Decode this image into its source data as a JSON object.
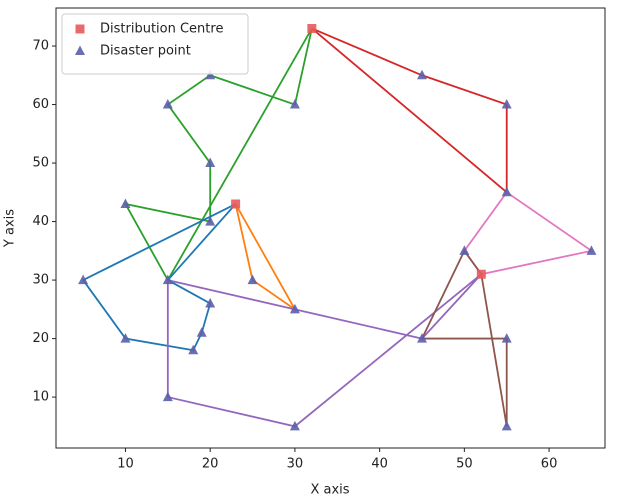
{
  "chart_data": {
    "type": "scatter",
    "xlabel": "X axis",
    "ylabel": "Y axis",
    "xlim": [
      1.8,
      66.6
    ],
    "ylim": [
      1.3,
      76.5
    ],
    "xticks": [
      10,
      20,
      30,
      40,
      50,
      60
    ],
    "yticks": [
      10,
      20,
      30,
      40,
      50,
      60,
      70
    ],
    "grid": false,
    "legend": "upper left",
    "series": [
      {
        "name": "Distribution Centre",
        "color": "#e8595a",
        "marker": "square",
        "x": [
          32,
          23,
          52
        ],
        "y": [
          73,
          43,
          31
        ]
      },
      {
        "name": "Disaster point",
        "color": "#5b5fa8",
        "marker": "triangle",
        "x": [
          45,
          55,
          55,
          30,
          20,
          15,
          20,
          20,
          10,
          15,
          5,
          10,
          18,
          19,
          20,
          25,
          30,
          45,
          15,
          30,
          65,
          50,
          55,
          55
        ],
        "y": [
          65,
          60,
          45,
          60,
          65,
          60,
          50,
          40,
          43,
          30,
          30,
          20,
          18,
          21,
          26,
          30,
          25,
          20,
          10,
          5,
          35,
          35,
          5,
          20
        ]
      }
    ],
    "routes": [
      {
        "color": "#d62728",
        "x": [
          32,
          45,
          55,
          55,
          32
        ],
        "y": [
          73,
          65,
          60,
          45,
          73
        ]
      },
      {
        "color": "#2ca02c",
        "x": [
          32,
          30,
          20,
          15,
          20,
          20,
          10,
          15,
          32
        ],
        "y": [
          73,
          60,
          65,
          60,
          50,
          40,
          43,
          30,
          73
        ]
      },
      {
        "color": "#1f77b4",
        "x": [
          23,
          5,
          10,
          18,
          19,
          20,
          15,
          23
        ],
        "y": [
          43,
          30,
          20,
          18,
          21,
          26,
          30,
          43
        ]
      },
      {
        "color": "#ff7f0e",
        "x": [
          23,
          25,
          30,
          23
        ],
        "y": [
          43,
          30,
          25,
          43
        ]
      },
      {
        "color": "#9467bd",
        "x": [
          52,
          45,
          30,
          15,
          15,
          30,
          52
        ],
        "y": [
          31,
          20,
          25,
          30,
          10,
          5,
          31
        ]
      },
      {
        "color": "#e377c2",
        "x": [
          52,
          65,
          55,
          50,
          52
        ],
        "y": [
          31,
          35,
          45,
          35,
          31
        ]
      },
      {
        "color": "#8c564b",
        "x": [
          52,
          55,
          55,
          45,
          50,
          52
        ],
        "y": [
          31,
          5,
          20,
          20,
          35,
          31
        ]
      }
    ]
  }
}
